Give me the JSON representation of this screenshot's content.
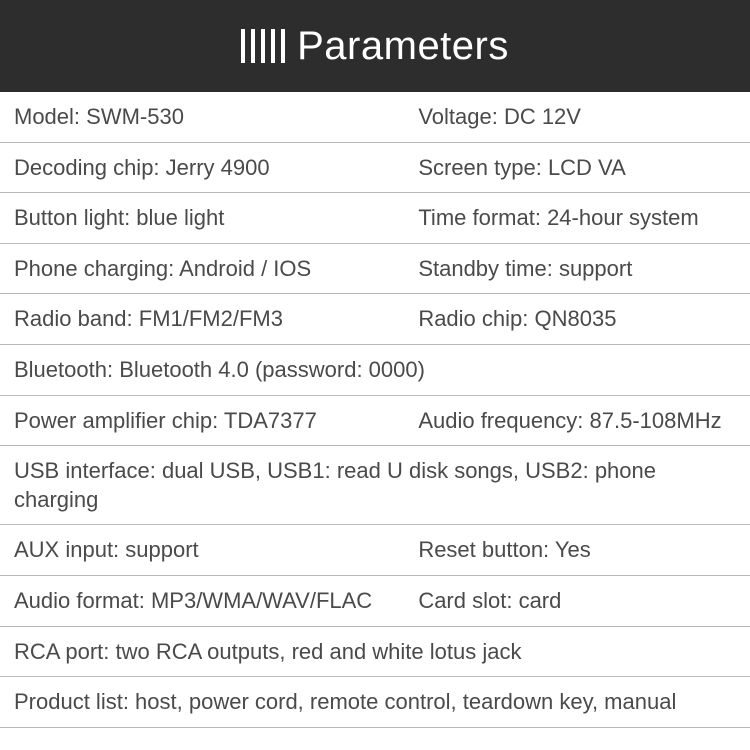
{
  "header": {
    "title": "Parameters",
    "bar_count": 5,
    "background_color": "#2d2d2d",
    "text_color": "#ffffff",
    "title_fontsize": 40
  },
  "table": {
    "text_color": "#4a4a4a",
    "border_color": "#b8b8b8",
    "fontsize": 22,
    "rows": [
      {
        "type": "pair",
        "left": "Model: SWM-530",
        "right": "Voltage: DC 12V"
      },
      {
        "type": "pair",
        "left": "Decoding chip: Jerry 4900",
        "right": "Screen type: LCD VA"
      },
      {
        "type": "pair",
        "left": "Button light: blue light",
        "right": "Time format: 24-hour system"
      },
      {
        "type": "pair",
        "left": "Phone charging: Android / IOS",
        "right": "Standby time: support"
      },
      {
        "type": "pair",
        "left": "Radio band: FM1/FM2/FM3",
        "right": "Radio chip: QN8035"
      },
      {
        "type": "full",
        "text": "Bluetooth: Bluetooth 4.0 (password: 0000)"
      },
      {
        "type": "pair",
        "left": "Power amplifier chip: TDA7377",
        "right": "Audio frequency: 87.5-108MHz"
      },
      {
        "type": "full",
        "text": "USB interface: dual USB, USB1: read U disk songs, USB2: phone charging"
      },
      {
        "type": "pair",
        "left": "AUX input: support",
        "right": "Reset button: Yes"
      },
      {
        "type": "pair",
        "left": "Audio format: MP3/WMA/WAV/FLAC",
        "right": "Card slot:  card"
      },
      {
        "type": "full",
        "text": "RCA port: two RCA outputs, red and white lotus jack"
      },
      {
        "type": "full",
        "text": "Product list: host, power cord, remote control, teardown key, manual"
      }
    ]
  }
}
